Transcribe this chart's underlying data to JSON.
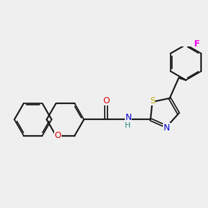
{
  "background_color": "#efefef",
  "bond_color": "#1a1a1a",
  "atom_colors": {
    "O_carbonyl": "#dd0000",
    "O_ring": "#dd0000",
    "N": "#0000cc",
    "S": "#bbaa00",
    "F": "#ee00ee",
    "H": "#228888",
    "C": "#1a1a1a"
  },
  "figsize": [
    3.0,
    3.0
  ],
  "dpi": 100
}
